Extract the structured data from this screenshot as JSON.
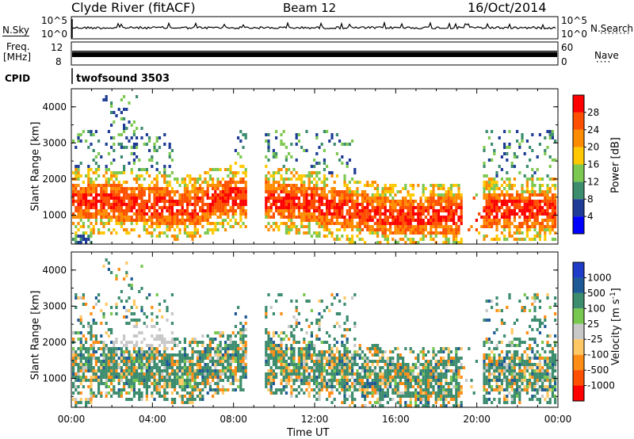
{
  "header": {
    "station": "Clyde River (fitACF)",
    "beam": "Beam 12",
    "date": "16/Oct/2014"
  },
  "noise_panel": {
    "left_label": "N.Sky",
    "right_label": "N.Search",
    "left_ticks": [
      "10^5",
      "10^0"
    ],
    "right_ticks": [
      "10^5",
      "10^0"
    ]
  },
  "freq_panel": {
    "left_label_1": "Freq.",
    "left_label_2": "[MHz]",
    "left_ticks": [
      "12",
      "8"
    ],
    "right_label": "Nave",
    "right_ticks": [
      "60",
      "0"
    ]
  },
  "cpid_panel": {
    "label": "CPID",
    "value": "twofsound 3503"
  },
  "colors": {
    "power_scale": [
      "#0000ff",
      "#1e3c96",
      "#3c8c6e",
      "#7dc850",
      "#ffc800",
      "#ff8c00",
      "#ff5000",
      "#ff0000"
    ],
    "velocity_scale": [
      "#1e3cc8",
      "#1e5a96",
      "#3c8c6e",
      "#78c850",
      "#c8c8c8",
      "#ffc864",
      "#ff8c14",
      "#ff5000",
      "#ff0000"
    ]
  },
  "chart_data": [
    {
      "type": "heatmap",
      "panel": "power",
      "xlabel": "",
      "ylabel": "Slant Range [km]",
      "ylim": [
        200,
        4500
      ],
      "xlim": [
        "00:00",
        "24:00"
      ],
      "y_ticks": [
        "1000",
        "2000",
        "3000",
        "4000"
      ],
      "colorbar_label": "Power [dB]",
      "colorbar_ticks": [
        "4",
        "8",
        "12",
        "16",
        "20",
        "24",
        "28"
      ]
    },
    {
      "type": "heatmap",
      "panel": "velocity",
      "xlabel": "Time UT",
      "ylabel": "Slant Range [km]",
      "ylim": [
        200,
        4500
      ],
      "xlim": [
        "00:00",
        "24:00"
      ],
      "x_ticks": [
        "00:00",
        "04:00",
        "08:00",
        "12:00",
        "16:00",
        "20:00",
        "00:00"
      ],
      "y_ticks": [
        "1000",
        "2000",
        "3000",
        "4000"
      ],
      "colorbar_label": "Velocity [m s^-1]",
      "colorbar_ticks": [
        "1000",
        "500",
        "100",
        "25",
        "-25",
        "-100",
        "-500",
        "-1000"
      ]
    }
  ]
}
